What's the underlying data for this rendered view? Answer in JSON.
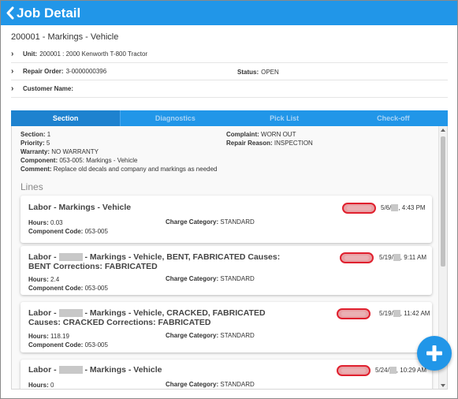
{
  "header": {
    "title": "Job Detail"
  },
  "job": {
    "title": "200001 - Markings - Vehicle"
  },
  "info": {
    "unit_label": "Unit:",
    "unit_value": "200001 : 2000 Kenworth T-800 Tractor",
    "repair_order_label": "Repair Order:",
    "repair_order_value": "3-0000000396",
    "status_label": "Status:",
    "status_value": "OPEN",
    "customer_label": "Customer Name:",
    "customer_value": ""
  },
  "tabs": [
    {
      "label": "Section"
    },
    {
      "label": "Diagnostics"
    },
    {
      "label": "Pick List"
    },
    {
      "label": "Check-off"
    }
  ],
  "section": {
    "section_label": "Section:",
    "section_value": "1",
    "priority_label": "Priority:",
    "priority_value": "5",
    "warranty_label": "Warranty:",
    "warranty_value": "NO WARRANTY",
    "component_label": "Component:",
    "component_value": "053-005: Markings - Vehicle",
    "comment_label": "Comment:",
    "comment_value": "Replace old decals and company and markings as needed",
    "complaint_label": "Complaint:",
    "complaint_value": "WORN OUT",
    "repair_reason_label": "Repair Reason:",
    "repair_reason_value": "INSPECTION"
  },
  "lines": {
    "heading": "Lines",
    "hours_label": "Hours:",
    "component_code_label": "Component Code:",
    "charge_label": "Charge Category:",
    "items": [
      {
        "title_a": "Labor - Markings - Vehicle",
        "title_b": "",
        "date_a": "5/6/",
        "date_b": ", 4:43 PM",
        "hours": "0.03",
        "component_code": "053-005",
        "charge": "STANDARD"
      },
      {
        "title_a": "Labor -",
        "title_b": "- Markings - Vehicle, BENT, FABRICATED Causes: BENT Corrections: FABRICATED",
        "date_a": "5/19/",
        "date_b": ", 9:11 AM",
        "hours": "2.4",
        "component_code": "053-005",
        "charge": "STANDARD"
      },
      {
        "title_a": "Labor -",
        "title_b": "- Markings - Vehicle, CRACKED, FABRICATED Causes: CRACKED Corrections: FABRICATED",
        "date_a": "5/19/",
        "date_b": ", 11:42 AM",
        "hours": "118.19",
        "component_code": "053-005",
        "charge": "STANDARD"
      },
      {
        "title_a": "Labor -",
        "title_b": "- Markings - Vehicle",
        "date_a": "5/24/",
        "date_b": ", 10:29 AM",
        "hours": "0",
        "component_code": "",
        "charge": "STANDARD"
      }
    ]
  },
  "colors": {
    "primary": "#2196e8",
    "status_pill": "#e0202e"
  },
  "icons": {
    "back": "chevron-left-icon",
    "add": "plus-icon",
    "expand": "chevron-right-icon"
  }
}
